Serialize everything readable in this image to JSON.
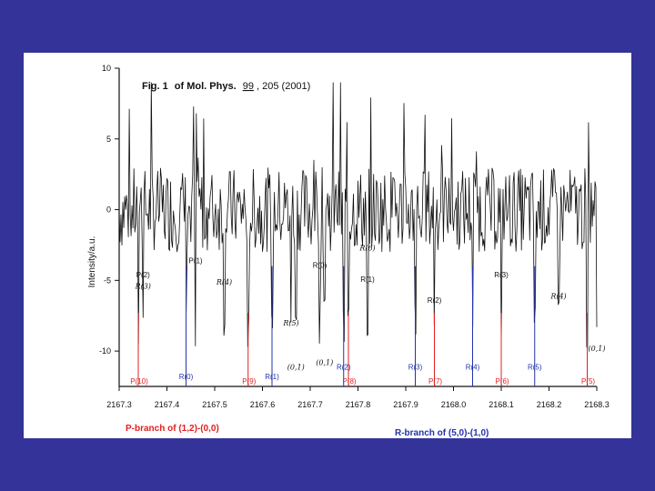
{
  "chart_data": {
    "type": "line",
    "title_prefix": "Fig. 1",
    "title_rest": "of Mol. Phys.",
    "title_volume": "99",
    "title_tail": ", 205 (2001)",
    "ylabel": "Intensity/a.u.",
    "ylim": [
      -12.5,
      10
    ],
    "yticks": [
      10,
      5,
      0,
      -5,
      -10
    ],
    "xlim": [
      2167.3,
      2168.3
    ],
    "xticks": [
      {
        "v": 2167.3,
        "label": "2167.3"
      },
      {
        "v": 2167.4,
        "label": "2167.4"
      },
      {
        "v": 2167.5,
        "label": "2167.5"
      },
      {
        "v": 2167.6,
        "label": "2167.6"
      },
      {
        "v": 2167.7,
        "label": "2167.7"
      },
      {
        "v": 2167.8,
        "label": "2167.8"
      },
      {
        "v": 2167.9,
        "label": "2167.9"
      },
      {
        "v": 2168.0,
        "label": "2168.0"
      },
      {
        "v": 2168.1,
        "label": "2168.1"
      },
      {
        "v": 2168.2,
        "label": "2168.2"
      },
      {
        "v": 2168.3,
        "label": "2168.3"
      }
    ],
    "p_branch_lines": [
      {
        "label": "P(10)",
        "x": 2167.34
      },
      {
        "label": "P(9)",
        "x": 2167.57
      },
      {
        "label": "P(8)",
        "x": 2167.78
      },
      {
        "label": "P(7)",
        "x": 2167.96
      },
      {
        "label": "P(6)",
        "x": 2168.1
      },
      {
        "label": "P(5)",
        "x": 2168.28
      }
    ],
    "r_branch_lines": [
      {
        "label": "R(0)",
        "x": 2167.44
      },
      {
        "label": "R(1)",
        "x": 2167.62
      },
      {
        "label": "R(2)",
        "x": 2167.77
      },
      {
        "label": "R(3)",
        "x": 2167.92
      },
      {
        "label": "R(4)",
        "x": 2168.04
      },
      {
        "label": "R(5)",
        "x": 2168.17
      }
    ],
    "r_label_y": [
      -12.0,
      -12.0,
      -11.3,
      -11.3,
      -11.3,
      -11.3
    ],
    "assignments": [
      {
        "label": "P(2)",
        "x": 2167.35,
        "y": -4.8,
        "style": "print"
      },
      {
        "label": "R(3)",
        "x": 2167.35,
        "y": -5.6,
        "style": "hand"
      },
      {
        "label": "P(1)",
        "x": 2167.46,
        "y": -3.8,
        "style": "print"
      },
      {
        "label": "R(4)",
        "x": 2167.52,
        "y": -5.3,
        "style": "hand"
      },
      {
        "label": "R(5)",
        "x": 2167.66,
        "y": -8.2,
        "style": "hand"
      },
      {
        "label": "R(0)",
        "x": 2167.72,
        "y": -4.1,
        "style": "print"
      },
      {
        "label": "R(6)",
        "x": 2167.82,
        "y": -2.9,
        "style": "hand"
      },
      {
        "label": "R(1)",
        "x": 2167.82,
        "y": -5.1,
        "style": "print"
      },
      {
        "label": "R(2)",
        "x": 2167.96,
        "y": -6.6,
        "style": "print"
      },
      {
        "label": "R(3)",
        "x": 2168.1,
        "y": -4.8,
        "style": "print"
      },
      {
        "label": "R(4)",
        "x": 2168.22,
        "y": -6.3,
        "style": "hand"
      },
      {
        "label": "(0,1)",
        "x": 2167.67,
        "y": -11.3,
        "style": "hand"
      },
      {
        "label": "(0,1)",
        "x": 2167.73,
        "y": -11.0,
        "style": "hand"
      },
      {
        "label": "(0,1)",
        "x": 2168.3,
        "y": -10.0,
        "style": "hand"
      }
    ],
    "grid": false
  },
  "legend": {
    "p_branch": "P-branch of (1,2)-(0,0)",
    "r_branch": "R-branch of (5,0)-(1,0)"
  },
  "colors": {
    "background": "#333399",
    "panel": "#ffffff",
    "p_branch": "#e02020",
    "r_branch": "#2233aa",
    "trace": "#111111"
  }
}
